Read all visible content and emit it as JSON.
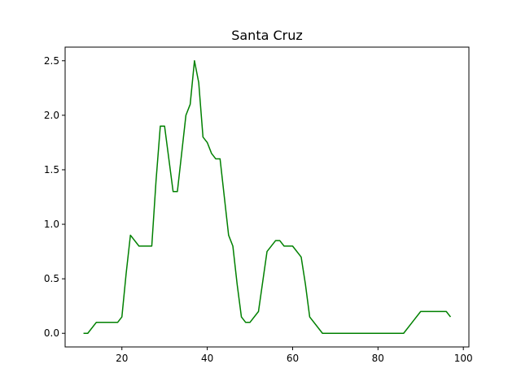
{
  "chart_data": {
    "type": "line",
    "title": "Santa Cruz",
    "xlabel": "",
    "ylabel": "",
    "xlim": [
      6.7,
      101.3
    ],
    "ylim": [
      -0.125,
      2.625
    ],
    "x_ticks": [
      20,
      40,
      60,
      80,
      100
    ],
    "x_tick_labels": [
      "20",
      "40",
      "60",
      "80",
      "100"
    ],
    "y_ticks": [
      0.0,
      0.5,
      1.0,
      1.5,
      2.0,
      2.5
    ],
    "y_tick_labels": [
      "0.0",
      "0.5",
      "1.0",
      "1.5",
      "2.0",
      "2.5"
    ],
    "grid": false,
    "series": [
      {
        "color": "#008000",
        "x": [
          11,
          12,
          14,
          15,
          16,
          17,
          18,
          19,
          20,
          21,
          22,
          24,
          25,
          26,
          27,
          28,
          29,
          30,
          31,
          32,
          33,
          34,
          35,
          36,
          37,
          38,
          39,
          40,
          41,
          42,
          43,
          44,
          45,
          46,
          47,
          48,
          49,
          50,
          52,
          54,
          56,
          57,
          58,
          59,
          60,
          62,
          63,
          64,
          67,
          70,
          75,
          80,
          86,
          90,
          93,
          96,
          97
        ],
        "values": [
          0.0,
          0.0,
          0.1,
          0.1,
          0.1,
          0.1,
          0.1,
          0.1,
          0.15,
          0.55,
          0.9,
          0.8,
          0.8,
          0.8,
          0.8,
          1.4,
          1.9,
          1.9,
          1.6,
          1.3,
          1.3,
          1.65,
          2.0,
          2.1,
          2.5,
          2.3,
          1.8,
          1.75,
          1.65,
          1.6,
          1.6,
          1.25,
          0.9,
          0.8,
          0.45,
          0.15,
          0.1,
          0.1,
          0.2,
          0.75,
          0.85,
          0.85,
          0.8,
          0.8,
          0.8,
          0.7,
          0.45,
          0.15,
          0.0,
          0.0,
          0.0,
          0.0,
          0.0,
          0.2,
          0.2,
          0.2,
          0.15
        ]
      }
    ]
  }
}
